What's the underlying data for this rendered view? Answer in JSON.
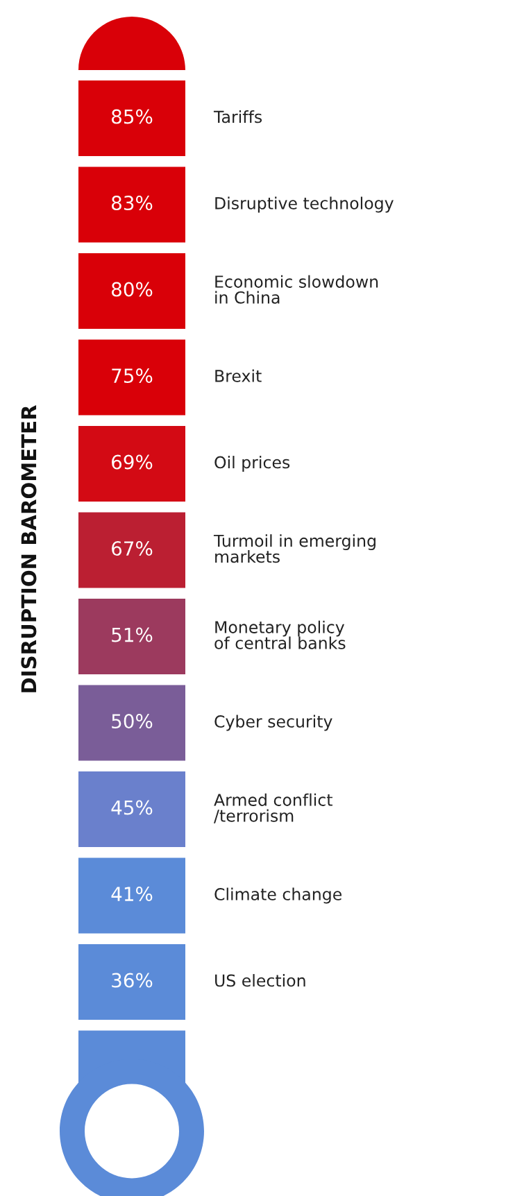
{
  "chart_data": {
    "type": "other",
    "title": "DISRUPTION BAROMETER",
    "categories": [
      "Tariffs",
      "Disruptive technology",
      "Economic slowdown\nin China",
      "Brexit",
      "Oil prices",
      "Turmoil in emerging\nmarkets",
      "Monetary policy\nof central banks",
      "Cyber security",
      "Armed conflict\n/terrorism",
      "Climate change",
      "US election"
    ],
    "values": [
      85,
      83,
      80,
      75,
      69,
      67,
      51,
      50,
      45,
      41,
      36
    ],
    "value_labels": [
      "85%",
      "83%",
      "80%",
      "75%",
      "69%",
      "67%",
      "51%",
      "50%",
      "45%",
      "41%",
      "36%"
    ],
    "colors": [
      "#d90008",
      "#d90008",
      "#d90008",
      "#d90008",
      "#d30a14",
      "#bb1f32",
      "#9c3a5e",
      "#7a5d98",
      "#6a80cc",
      "#5b8bd8",
      "#5b8bd8"
    ]
  }
}
